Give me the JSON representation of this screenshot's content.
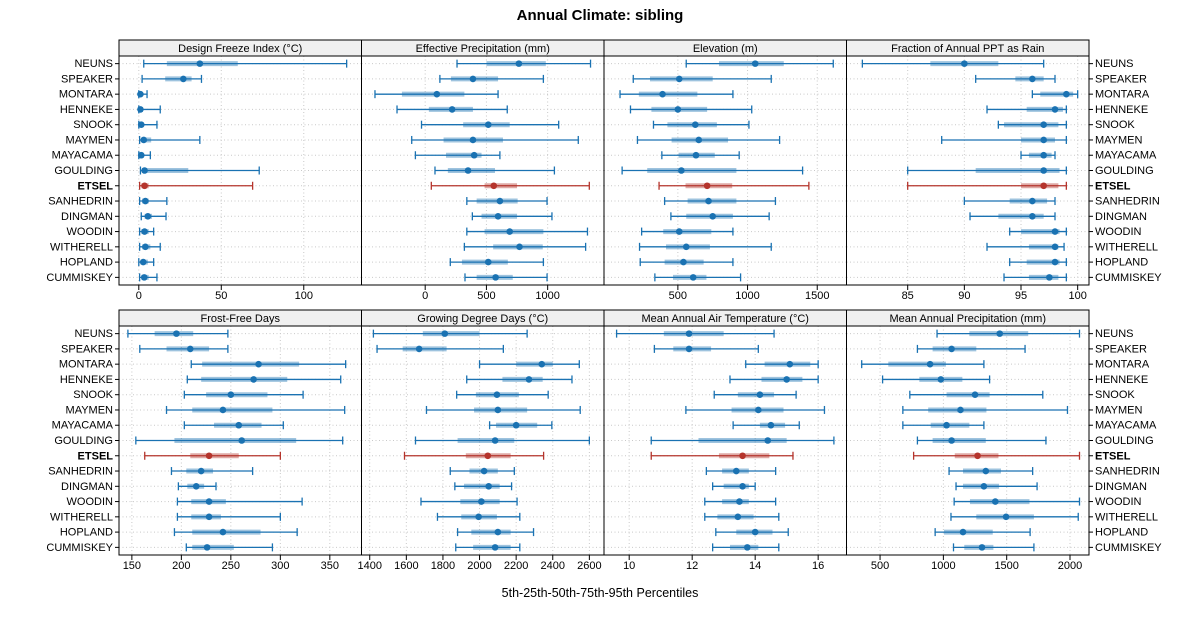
{
  "title": "Annual Climate: sibling",
  "caption": "5th-25th-50th-75th-95th Percentiles",
  "chart_data": {
    "type": "dot-whisker-lattice",
    "percentiles": [
      5,
      25,
      50,
      75,
      95
    ],
    "layout": {
      "rows": 2,
      "cols": 4,
      "grid": "dotted",
      "strip_headers": true
    },
    "stations": [
      "NEUNS",
      "SPEAKER",
      "MONTARA",
      "HENNEKE",
      "SNOOK",
      "MAYMEN",
      "MAYACAMA",
      "GOULDING",
      "ETSEL",
      "SANHEDRIN",
      "DINGMAN",
      "WOODIN",
      "WITHERELL",
      "HOPLAND",
      "CUMMISKEY"
    ],
    "highlight_station": "ETSEL",
    "colors": {
      "series": "#1A72B2",
      "highlight": "#B5342C",
      "grid": "#C9C9C9",
      "strip_bg": "#F0F0F0",
      "border": "#000000"
    },
    "panels": [
      {
        "title": "Design Freeze Index (°C)",
        "ticks": [
          0,
          50,
          100
        ],
        "xlim": [
          -12,
          135
        ],
        "values": {
          "NEUNS": [
            3,
            17,
            37,
            60,
            126
          ],
          "SPEAKER": [
            2,
            16,
            27,
            32,
            38
          ],
          "MONTARA": [
            0,
            0.5,
            1,
            2,
            5
          ],
          "HENNEKE": [
            0,
            0.5,
            1,
            2.5,
            13
          ],
          "SNOOK": [
            0,
            1,
            1.5,
            3,
            11
          ],
          "MAYMEN": [
            0.5,
            1.5,
            3,
            7.5,
            37
          ],
          "MAYACAMA": [
            0,
            1,
            1.5,
            3,
            7
          ],
          "GOULDING": [
            1,
            2,
            3.5,
            30,
            73
          ],
          "ETSEL": [
            0.5,
            1.5,
            3.5,
            6,
            69
          ],
          "SANHEDRIN": [
            0.5,
            2,
            4,
            6,
            17
          ],
          "DINGMAN": [
            1.5,
            3.5,
            5.5,
            8,
            16.5
          ],
          "WOODIN": [
            0.5,
            1.5,
            3.5,
            6,
            9
          ],
          "WITHERELL": [
            0.5,
            2,
            4,
            7,
            13
          ],
          "HOPLAND": [
            0,
            1,
            2.7,
            5.5,
            9
          ],
          "CUMMISKEY": [
            0.5,
            1.5,
            3.3,
            6,
            11
          ]
        }
      },
      {
        "title": "Effective Precipitation (mm)",
        "ticks": [
          0,
          500,
          1000
        ],
        "xlim": [
          -520,
          1460
        ],
        "values": {
          "NEUNS": [
            260,
            500,
            765,
            985,
            1350
          ],
          "SPEAKER": [
            120,
            210,
            390,
            595,
            965
          ],
          "MONTARA": [
            -410,
            -190,
            95,
            320,
            595
          ],
          "HENNEKE": [
            -230,
            30,
            220,
            390,
            670
          ],
          "SNOOK": [
            -30,
            310,
            515,
            690,
            1090
          ],
          "MAYMEN": [
            -110,
            150,
            390,
            635,
            1250
          ],
          "MAYACAMA": [
            -80,
            170,
            400,
            460,
            610
          ],
          "GOULDING": [
            80,
            185,
            350,
            570,
            1055
          ],
          "ETSEL": [
            50,
            485,
            560,
            750,
            1340
          ],
          "SANHEDRIN": [
            340,
            420,
            610,
            755,
            995
          ],
          "DINGMAN": [
            385,
            460,
            595,
            750,
            1035
          ],
          "WOODIN": [
            340,
            485,
            690,
            965,
            1325
          ],
          "WITHERELL": [
            320,
            555,
            770,
            960,
            1310
          ],
          "HOPLAND": [
            205,
            300,
            515,
            675,
            965
          ],
          "CUMMISKEY": [
            325,
            420,
            575,
            715,
            995
          ]
        }
      },
      {
        "title": "Elevation (m)",
        "ticks": [
          500,
          1000,
          1500
        ],
        "xlim": [
          -30,
          1710
        ],
        "values": {
          "NEUNS": [
            560,
            795,
            1055,
            1260,
            1615
          ],
          "SPEAKER": [
            180,
            300,
            510,
            750,
            1170
          ],
          "MONTARA": [
            85,
            220,
            390,
            640,
            895
          ],
          "HENNEKE": [
            160,
            310,
            500,
            710,
            1030
          ],
          "SNOOK": [
            325,
            425,
            625,
            780,
            1010
          ],
          "MAYMEN": [
            210,
            455,
            650,
            860,
            1230
          ],
          "MAYACAMA": [
            385,
            505,
            630,
            765,
            940
          ],
          "GOULDING": [
            100,
            280,
            525,
            920,
            1395
          ],
          "ETSEL": [
            365,
            555,
            710,
            890,
            1440
          ],
          "SANHEDRIN": [
            405,
            570,
            720,
            920,
            1200
          ],
          "DINGMAN": [
            450,
            560,
            750,
            895,
            1155
          ],
          "WOODIN": [
            240,
            395,
            510,
            740,
            895
          ],
          "WITHERELL": [
            225,
            415,
            560,
            730,
            1170
          ],
          "HOPLAND": [
            230,
            405,
            540,
            685,
            895
          ],
          "CUMMISKEY": [
            335,
            465,
            610,
            705,
            950
          ]
        }
      },
      {
        "title": "Fraction of Annual PPT as Rain",
        "ticks": [
          85,
          90,
          95,
          100
        ],
        "xlim": [
          79.6,
          101
        ],
        "values": {
          "NEUNS": [
            81,
            87,
            90,
            93,
            97
          ],
          "SPEAKER": [
            91,
            94.5,
            96,
            97,
            98
          ],
          "MONTARA": [
            96,
            96.7,
            99,
            99.6,
            100
          ],
          "HENNEKE": [
            92,
            95.5,
            98,
            98.7,
            99
          ],
          "SNOOK": [
            93,
            93.5,
            97,
            98.3,
            99
          ],
          "MAYMEN": [
            88,
            95,
            97,
            98,
            99
          ],
          "MAYACAMA": [
            95,
            95.7,
            97,
            97.7,
            98
          ],
          "GOULDING": [
            85,
            91,
            97,
            98.4,
            99
          ],
          "ETSEL": [
            85,
            95,
            97,
            98.3,
            99
          ],
          "SANHEDRIN": [
            90,
            94,
            96,
            97.3,
            98
          ],
          "DINGMAN": [
            90.5,
            93,
            96,
            97,
            98
          ],
          "WOODIN": [
            94,
            95,
            98,
            98.4,
            99
          ],
          "WITHERELL": [
            92,
            95.7,
            98,
            98.3,
            98.8
          ],
          "HOPLAND": [
            94,
            95.5,
            98,
            98.4,
            99
          ],
          "CUMMISKEY": [
            93.5,
            95.7,
            97.5,
            98.3,
            99
          ]
        }
      },
      {
        "title": "Frost-Free Days",
        "ticks": [
          150,
          200,
          250,
          300,
          350
        ],
        "xlim": [
          137,
          382
        ],
        "values": {
          "NEUNS": [
            146,
            173,
            195,
            212,
            247
          ],
          "SPEAKER": [
            158,
            185,
            209,
            228,
            247
          ],
          "MONTARA": [
            210,
            221,
            278,
            319,
            366
          ],
          "HENNEKE": [
            206,
            220,
            273,
            307,
            361
          ],
          "SNOOK": [
            203,
            225,
            250,
            287,
            323
          ],
          "MAYMEN": [
            185,
            211,
            242,
            292,
            365
          ],
          "MAYACAMA": [
            203,
            233,
            258,
            281,
            303
          ],
          "GOULDING": [
            154,
            193,
            261,
            316,
            363
          ],
          "ETSEL": [
            163,
            209,
            228,
            258,
            300
          ],
          "SANHEDRIN": [
            190,
            205,
            220,
            232,
            272
          ],
          "DINGMAN": [
            197,
            206,
            215,
            223,
            235
          ],
          "WOODIN": [
            196,
            210,
            228,
            245,
            322
          ],
          "WITHERELL": [
            196,
            210,
            228,
            240,
            300
          ],
          "HOPLAND": [
            193,
            211,
            242,
            280,
            317
          ],
          "CUMMISKEY": [
            205,
            211,
            226,
            253,
            292
          ]
        }
      },
      {
        "title": "Growing Degree Days (°C)",
        "ticks": [
          1400,
          1600,
          1800,
          2000,
          2200,
          2400,
          2600
        ],
        "xlim": [
          1355,
          2680
        ],
        "values": {
          "NEUNS": [
            1420,
            1690,
            1810,
            2000,
            2260
          ],
          "SPEAKER": [
            1440,
            1580,
            1670,
            1820,
            2130
          ],
          "MONTARA": [
            2000,
            2200,
            2340,
            2400,
            2545
          ],
          "HENNEKE": [
            1930,
            2125,
            2270,
            2345,
            2505
          ],
          "SNOOK": [
            1875,
            1980,
            2095,
            2215,
            2375
          ],
          "MAYMEN": [
            1710,
            1970,
            2100,
            2260,
            2550
          ],
          "MAYACAMA": [
            2055,
            2090,
            2200,
            2315,
            2395
          ],
          "GOULDING": [
            1650,
            1880,
            2085,
            2190,
            2600
          ],
          "ETSEL": [
            1590,
            1925,
            2045,
            2170,
            2350
          ],
          "SANHEDRIN": [
            1840,
            1945,
            2025,
            2100,
            2190
          ],
          "DINGMAN": [
            1865,
            1915,
            2050,
            2110,
            2175
          ],
          "WOODIN": [
            1680,
            1895,
            2010,
            2110,
            2205
          ],
          "WITHERELL": [
            1770,
            1900,
            1995,
            2095,
            2220
          ],
          "HOPLAND": [
            1880,
            1955,
            2100,
            2170,
            2295
          ],
          "CUMMISKEY": [
            1870,
            1965,
            2085,
            2170,
            2220
          ]
        }
      },
      {
        "title": "Mean Annual Air Temperature (°C)",
        "ticks": [
          10,
          12,
          14,
          16
        ],
        "xlim": [
          9.2,
          16.9
        ],
        "values": {
          "NEUNS": [
            9.6,
            11.1,
            11.9,
            13.0,
            14.6
          ],
          "SPEAKER": [
            10.8,
            11.4,
            11.9,
            12.6,
            14.1
          ],
          "MONTARA": [
            13.7,
            14.3,
            15.1,
            15.75,
            16.0
          ],
          "HENNEKE": [
            13.2,
            14.2,
            15.0,
            15.5,
            16.0
          ],
          "SNOOK": [
            12.7,
            13.45,
            14.15,
            14.6,
            15.3
          ],
          "MAYMEN": [
            11.8,
            13.25,
            14.1,
            14.9,
            16.2
          ],
          "MAYACAMA": [
            13.3,
            14.15,
            14.5,
            14.95,
            15.4
          ],
          "GOULDING": [
            10.7,
            12.2,
            14.4,
            15.0,
            16.5
          ],
          "ETSEL": [
            10.7,
            12.85,
            13.6,
            14.45,
            15.2
          ],
          "SANHEDRIN": [
            12.45,
            12.95,
            13.4,
            13.8,
            14.65
          ],
          "DINGMAN": [
            12.65,
            13.0,
            13.6,
            13.8,
            14.0
          ],
          "WOODIN": [
            12.4,
            12.95,
            13.5,
            13.8,
            14.65
          ],
          "WITHERELL": [
            12.4,
            12.8,
            13.45,
            13.95,
            14.75
          ],
          "HOPLAND": [
            12.75,
            13.4,
            14.0,
            14.55,
            15.05
          ],
          "CUMMISKEY": [
            12.65,
            13.2,
            13.75,
            14.1,
            14.75
          ]
        }
      },
      {
        "title": "Mean Annual Precipitation (mm)",
        "ticks": [
          500,
          1000,
          1500,
          2000
        ],
        "xlim": [
          235,
          2150
        ],
        "values": {
          "NEUNS": [
            950,
            1205,
            1445,
            1670,
            2075
          ],
          "SPEAKER": [
            795,
            915,
            1065,
            1260,
            1645
          ],
          "MONTARA": [
            355,
            565,
            895,
            1020,
            1320
          ],
          "HENNEKE": [
            520,
            810,
            980,
            1150,
            1365
          ],
          "SNOOK": [
            735,
            1025,
            1250,
            1365,
            1785
          ],
          "MAYMEN": [
            680,
            880,
            1135,
            1340,
            1980
          ],
          "MAYACAMA": [
            680,
            900,
            1025,
            1205,
            1320
          ],
          "GOULDING": [
            795,
            915,
            1065,
            1335,
            1810
          ],
          "ETSEL": [
            765,
            1090,
            1270,
            1435,
            2075
          ],
          "SANHEDRIN": [
            1045,
            1155,
            1335,
            1455,
            1705
          ],
          "DINGMAN": [
            1100,
            1155,
            1320,
            1440,
            1740
          ],
          "WOODIN": [
            1085,
            1210,
            1410,
            1680,
            2075
          ],
          "WITHERELL": [
            1060,
            1260,
            1495,
            1715,
            2065
          ],
          "HOPLAND": [
            935,
            1005,
            1155,
            1390,
            1685
          ],
          "CUMMISKEY": [
            1080,
            1165,
            1305,
            1395,
            1715
          ]
        }
      }
    ]
  }
}
